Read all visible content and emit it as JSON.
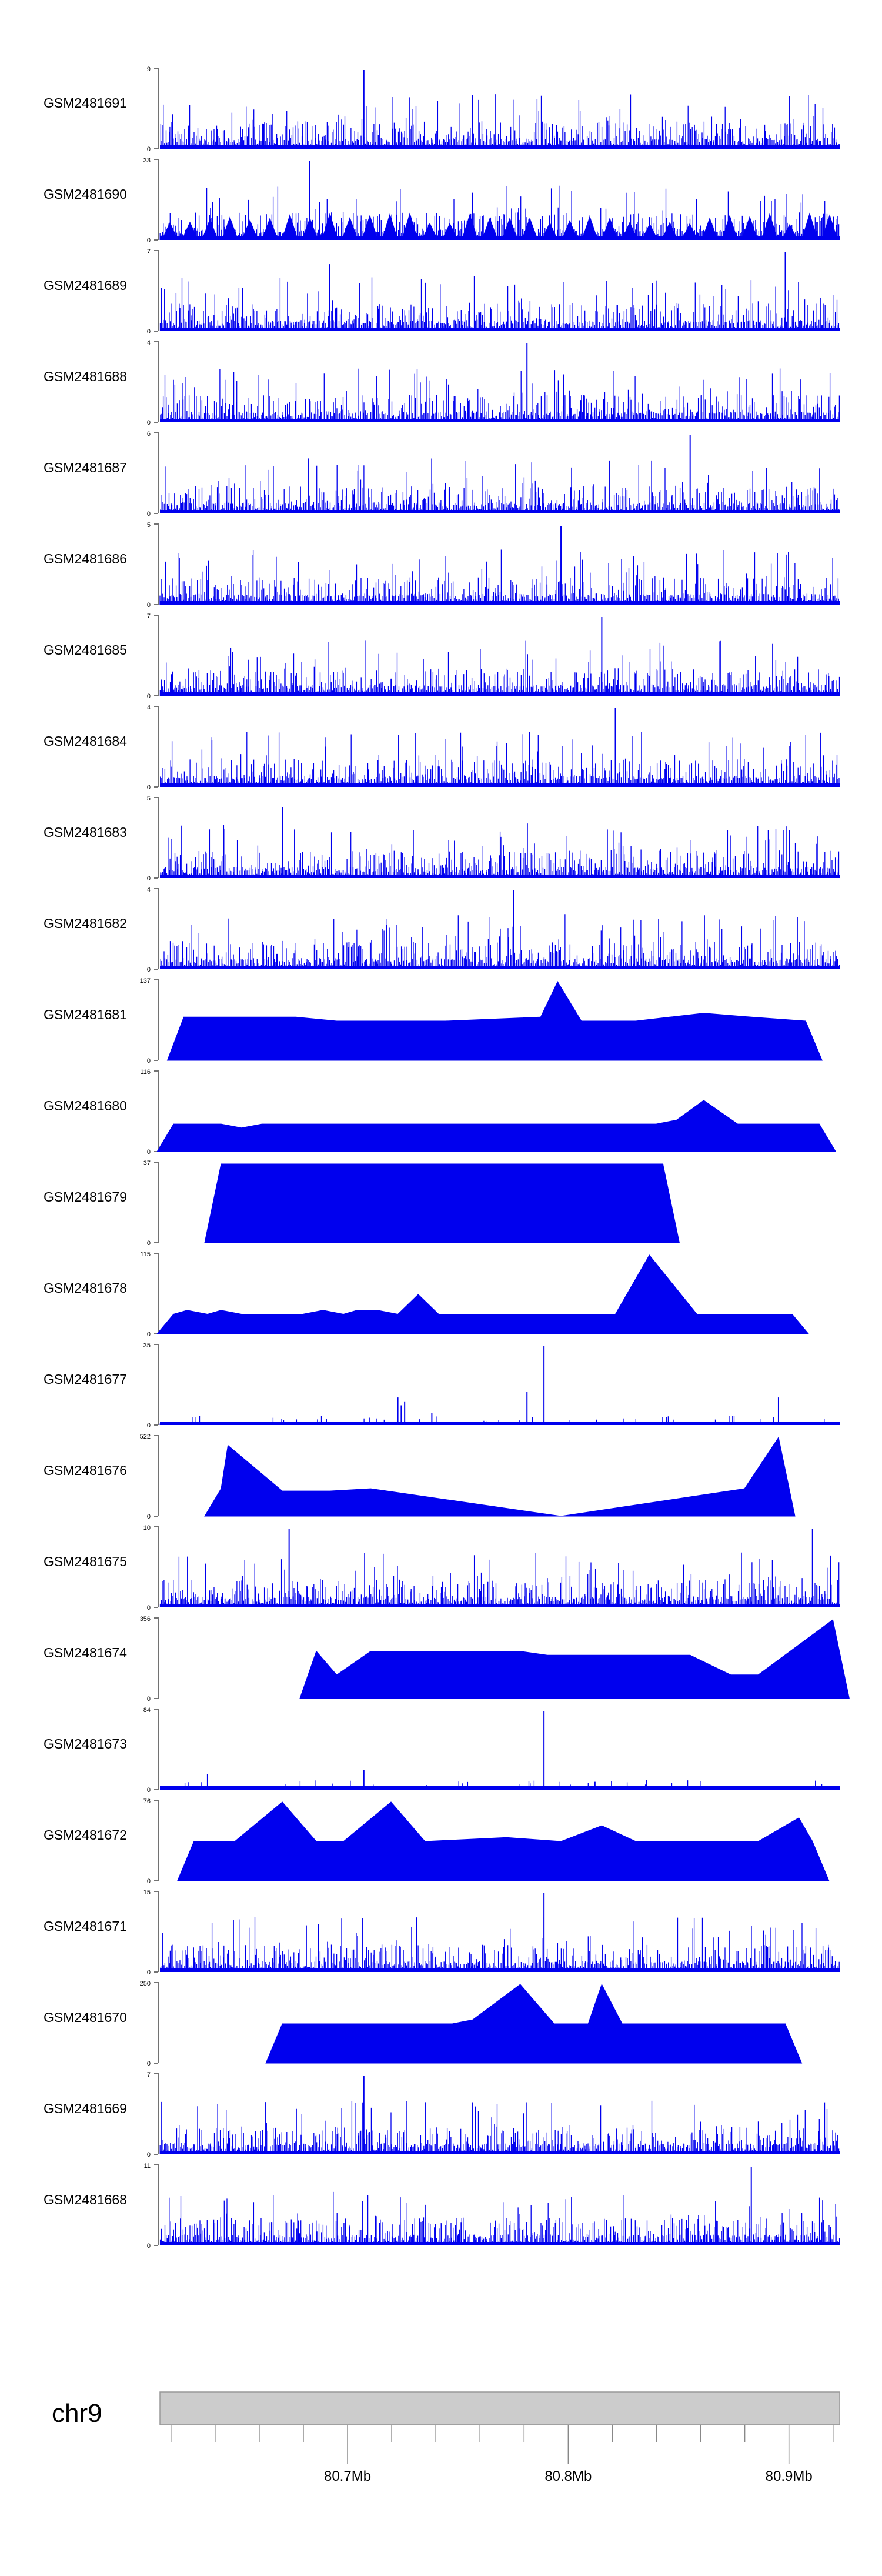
{
  "chart_data": {
    "type": "area",
    "title": "",
    "series": [
      {
        "name": "GSM2481691",
        "ymax": 9,
        "ymin": 0,
        "style": "dense",
        "seed": 11,
        "peaks": [
          [
            0.3,
            1.0
          ]
        ]
      },
      {
        "name": "GSM2481690",
        "ymax": 33,
        "ymin": 0,
        "style": "dense-tri",
        "seed": 12,
        "peaks": [
          [
            0.22,
            1.0
          ],
          [
            0.46,
            0.6
          ]
        ]
      },
      {
        "name": "GSM2481689",
        "ymax": 7,
        "ymin": 0,
        "style": "dense",
        "seed": 13,
        "peaks": [
          [
            0.25,
            0.85
          ],
          [
            0.92,
            1.0
          ]
        ]
      },
      {
        "name": "GSM2481688",
        "ymax": 4,
        "ymin": 0,
        "style": "dense",
        "seed": 14,
        "peaks": [
          [
            0.54,
            1.0
          ]
        ]
      },
      {
        "name": "GSM2481687",
        "ymax": 6,
        "ymin": 0,
        "style": "dense",
        "seed": 15,
        "peaks": [
          [
            0.78,
            1.0
          ]
        ]
      },
      {
        "name": "GSM2481686",
        "ymax": 5,
        "ymin": 0,
        "style": "dense",
        "seed": 16,
        "peaks": [
          [
            0.59,
            1.0
          ]
        ]
      },
      {
        "name": "GSM2481685",
        "ymax": 7,
        "ymin": 0,
        "style": "dense",
        "seed": 17,
        "peaks": [
          [
            0.65,
            1.0
          ]
        ]
      },
      {
        "name": "GSM2481684",
        "ymax": 4,
        "ymin": 0,
        "style": "dense",
        "seed": 18,
        "peaks": [
          [
            0.67,
            1.0
          ]
        ]
      },
      {
        "name": "GSM2481683",
        "ymax": 5,
        "ymin": 0,
        "style": "dense",
        "seed": 19,
        "peaks": [
          [
            0.18,
            0.9
          ]
        ]
      },
      {
        "name": "GSM2481682",
        "ymax": 4,
        "ymin": 0,
        "style": "dense",
        "seed": 20,
        "peaks": [
          [
            0.52,
            1.0
          ]
        ]
      },
      {
        "name": "GSM2481681",
        "ymax": 137,
        "ymin": 0,
        "style": "tri",
        "peaks": [
          [
            0.035,
            0.55
          ],
          [
            0.2,
            0.55
          ],
          [
            0.26,
            0.5
          ],
          [
            0.32,
            0.5
          ],
          [
            0.38,
            0.5
          ],
          [
            0.42,
            0.5
          ],
          [
            0.56,
            0.55
          ],
          [
            0.585,
            1.0
          ],
          [
            0.62,
            0.5
          ],
          [
            0.65,
            0.5
          ],
          [
            0.7,
            0.5
          ],
          [
            0.75,
            0.55
          ],
          [
            0.8,
            0.6
          ],
          [
            0.87,
            0.55
          ],
          [
            0.95,
            0.5
          ]
        ]
      },
      {
        "name": "GSM2481680",
        "ymax": 116,
        "ymin": 0,
        "style": "tri",
        "peaks": [
          [
            0.02,
            0.35
          ],
          [
            0.05,
            0.35
          ],
          [
            0.09,
            0.35
          ],
          [
            0.12,
            0.3
          ],
          [
            0.15,
            0.35
          ],
          [
            0.19,
            0.35
          ],
          [
            0.24,
            0.35
          ],
          [
            0.3,
            0.35
          ],
          [
            0.36,
            0.35
          ],
          [
            0.42,
            0.35
          ],
          [
            0.48,
            0.35
          ],
          [
            0.53,
            0.35
          ],
          [
            0.59,
            0.35
          ],
          [
            0.65,
            0.35
          ],
          [
            0.7,
            0.35
          ],
          [
            0.73,
            0.35
          ],
          [
            0.76,
            0.4
          ],
          [
            0.8,
            0.65
          ],
          [
            0.85,
            0.35
          ],
          [
            0.88,
            0.35
          ],
          [
            0.94,
            0.35
          ],
          [
            0.97,
            0.35
          ]
        ]
      },
      {
        "name": "GSM2481679",
        "ymax": 37,
        "ymin": 0,
        "style": "tri",
        "peaks": [
          [
            0.09,
            1.0
          ],
          [
            0.41,
            1.0
          ],
          [
            0.51,
            1.0
          ],
          [
            0.61,
            1.0
          ],
          [
            0.74,
            1.0
          ]
        ]
      },
      {
        "name": "GSM2481678",
        "ymax": 115,
        "ymin": 0,
        "style": "tri",
        "peaks": [
          [
            0.02,
            0.25
          ],
          [
            0.04,
            0.3
          ],
          [
            0.07,
            0.25
          ],
          [
            0.09,
            0.3
          ],
          [
            0.12,
            0.25
          ],
          [
            0.15,
            0.25
          ],
          [
            0.18,
            0.25
          ],
          [
            0.21,
            0.25
          ],
          [
            0.24,
            0.3
          ],
          [
            0.27,
            0.25
          ],
          [
            0.29,
            0.3
          ],
          [
            0.32,
            0.3
          ],
          [
            0.35,
            0.25
          ],
          [
            0.38,
            0.5
          ],
          [
            0.41,
            0.25
          ],
          [
            0.5,
            0.25
          ],
          [
            0.56,
            0.25
          ],
          [
            0.61,
            0.25
          ],
          [
            0.67,
            0.25
          ],
          [
            0.72,
            1.0
          ],
          [
            0.79,
            0.25
          ],
          [
            0.83,
            0.25
          ],
          [
            0.87,
            0.25
          ],
          [
            0.9,
            0.25
          ],
          [
            0.93,
            0.25
          ]
        ]
      },
      {
        "name": "GSM2481677",
        "ymax": 35,
        "ymin": 0,
        "style": "sparse",
        "seed": 21,
        "peaks": [
          [
            0.35,
            0.35
          ],
          [
            0.36,
            0.3
          ],
          [
            0.355,
            0.25
          ],
          [
            0.355,
            0.0
          ],
          [
            0.4,
            0.15
          ],
          [
            0.54,
            0.42
          ],
          [
            0.565,
            1.0
          ],
          [
            0.91,
            0.35
          ]
        ]
      },
      {
        "name": "GSM2481676",
        "ymax": 522,
        "ymin": 0,
        "style": "tri",
        "peaks": [
          [
            0.09,
            0.35
          ],
          [
            0.1,
            0.9
          ],
          [
            0.18,
            0.32
          ],
          [
            0.25,
            0.32
          ],
          [
            0.31,
            0.35
          ],
          [
            0.59,
            0.0
          ],
          [
            0.86,
            0.35
          ],
          [
            0.91,
            1.0
          ]
        ]
      },
      {
        "name": "GSM2481675",
        "ymax": 10,
        "ymin": 0,
        "style": "dense",
        "seed": 22,
        "peaks": [
          [
            0.19,
            1.0
          ],
          [
            0.96,
            1.0
          ]
        ]
      },
      {
        "name": "GSM2481674",
        "ymax": 356,
        "ymin": 0,
        "style": "tri",
        "peaks": [
          [
            0.23,
            0.6
          ],
          [
            0.26,
            0.3
          ],
          [
            0.31,
            0.6
          ],
          [
            0.53,
            0.6
          ],
          [
            0.57,
            0.55
          ],
          [
            0.61,
            0.55
          ],
          [
            0.66,
            0.55
          ],
          [
            0.69,
            0.55
          ],
          [
            0.71,
            0.55
          ],
          [
            0.73,
            0.55
          ],
          [
            0.75,
            0.55
          ],
          [
            0.78,
            0.55
          ],
          [
            0.84,
            0.3
          ],
          [
            0.88,
            0.3
          ],
          [
            0.99,
            1.0
          ]
        ]
      },
      {
        "name": "GSM2481673",
        "ymax": 84,
        "ymin": 0,
        "style": "sparse",
        "seed": 23,
        "peaks": [
          [
            0.07,
            0.2
          ],
          [
            0.3,
            0.25
          ],
          [
            0.565,
            1.0
          ],
          [
            0.64,
            0.1
          ]
        ]
      },
      {
        "name": "GSM2481672",
        "ymax": 76,
        "ymin": 0,
        "style": "tri",
        "peaks": [
          [
            0.05,
            0.5
          ],
          [
            0.11,
            0.5
          ],
          [
            0.18,
            1.0
          ],
          [
            0.23,
            0.5
          ],
          [
            0.27,
            0.5
          ],
          [
            0.34,
            1.0
          ],
          [
            0.39,
            0.5
          ],
          [
            0.51,
            0.55
          ],
          [
            0.59,
            0.5
          ],
          [
            0.65,
            0.7
          ],
          [
            0.7,
            0.5
          ],
          [
            0.76,
            0.5
          ],
          [
            0.82,
            0.5
          ],
          [
            0.88,
            0.5
          ],
          [
            0.94,
            0.8
          ],
          [
            0.96,
            0.5
          ]
        ]
      },
      {
        "name": "GSM2481671",
        "ymax": 15,
        "ymin": 0,
        "style": "dense",
        "seed": 24,
        "peaks": [
          [
            0.565,
            1.0
          ]
        ]
      },
      {
        "name": "GSM2481670",
        "ymax": 250,
        "ymin": 0,
        "style": "tri",
        "peaks": [
          [
            0.18,
            0.5
          ],
          [
            0.21,
            0.5
          ],
          [
            0.26,
            0.5
          ],
          [
            0.43,
            0.5
          ],
          [
            0.46,
            0.55
          ],
          [
            0.53,
            1.0
          ],
          [
            0.58,
            0.5
          ],
          [
            0.6,
            0.5
          ],
          [
            0.63,
            0.5
          ],
          [
            0.65,
            1.0
          ],
          [
            0.68,
            0.5
          ],
          [
            0.74,
            0.5
          ],
          [
            0.92,
            0.5
          ]
        ]
      },
      {
        "name": "GSM2481669",
        "ymax": 7,
        "ymin": 0,
        "style": "dense",
        "seed": 25,
        "peaks": [
          [
            0.3,
            1.0
          ]
        ]
      },
      {
        "name": "GSM2481668",
        "ymax": 11,
        "ymin": 0,
        "style": "dense",
        "seed": 26,
        "peaks": [
          [
            0.87,
            1.0
          ]
        ]
      }
    ],
    "axis": {
      "chromosome": "chr9",
      "xlim": [
        80.615,
        80.923
      ],
      "unit": "Mb",
      "minor_tick_step": 0.02,
      "major_ticks": [
        80.7,
        80.8,
        80.9
      ],
      "major_tick_labels": [
        "80.7Mb",
        "80.8Mb",
        "80.9Mb"
      ]
    },
    "fill_color": "#0000ee",
    "axis_color": "#444444",
    "ideogram_color": "#cccccc"
  }
}
